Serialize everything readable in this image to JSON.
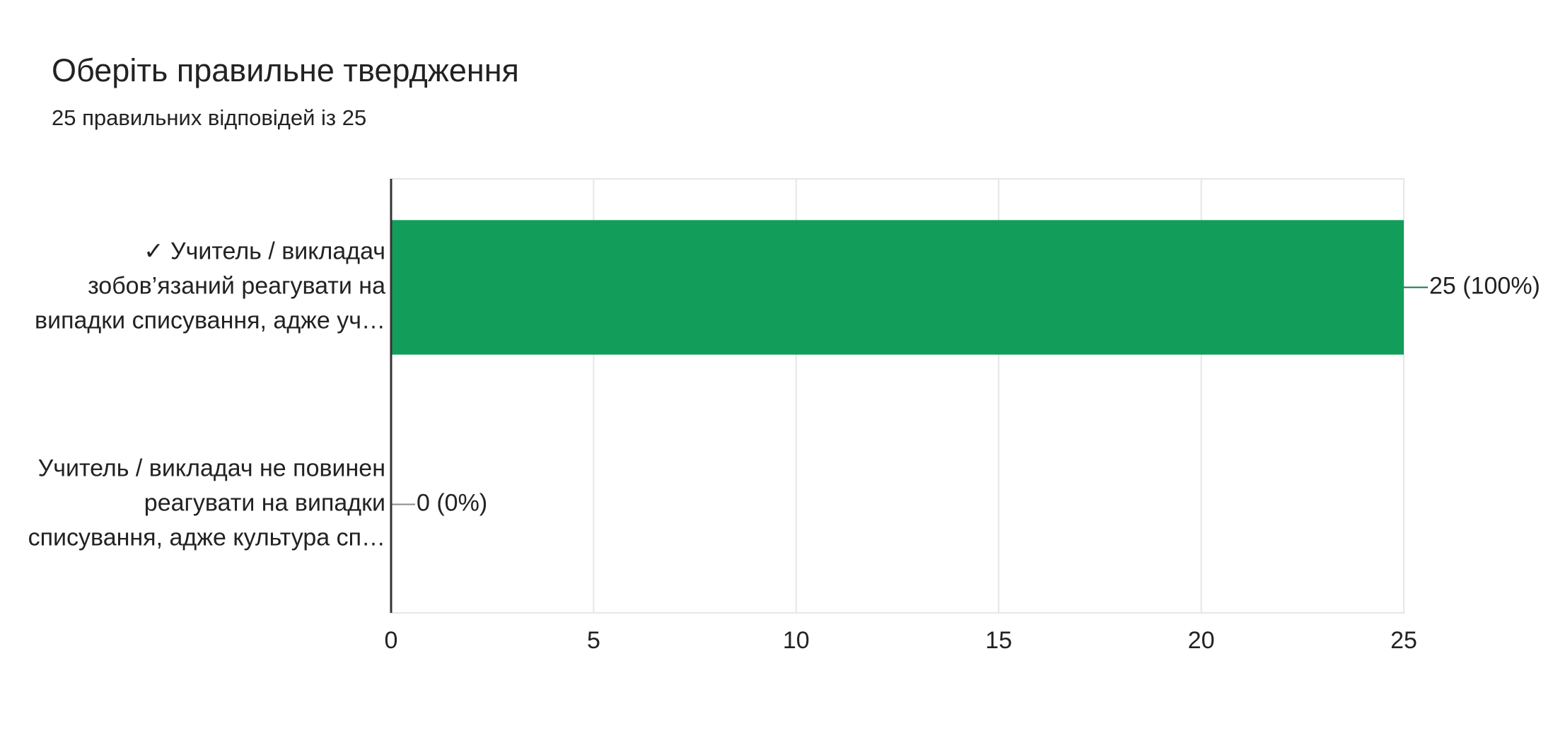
{
  "chart_data": {
    "type": "bar",
    "orientation": "horizontal",
    "title": "Оберіть правильне твердження",
    "subtitle": "25 правильних відповідей із 25",
    "categories": [
      [
        "✓ Учитель / викладач",
        "зобов’язаний реагувати на",
        "випадки списування, адже уч…"
      ],
      [
        "Учитель / викладач не повинен",
        "реагувати на випадки",
        "списування, адже культура сп…"
      ]
    ],
    "values": [
      25,
      0
    ],
    "value_labels": [
      "25 (100%)",
      "0 (0%)"
    ],
    "bar_colors": [
      "#129e5a",
      "#129e5a"
    ],
    "value_label_colors": [
      "#0e7a46",
      "#8a8a8a"
    ],
    "xlim": [
      0,
      25
    ],
    "xticks": [
      0,
      5,
      10,
      15,
      20,
      25
    ],
    "grid": true
  }
}
